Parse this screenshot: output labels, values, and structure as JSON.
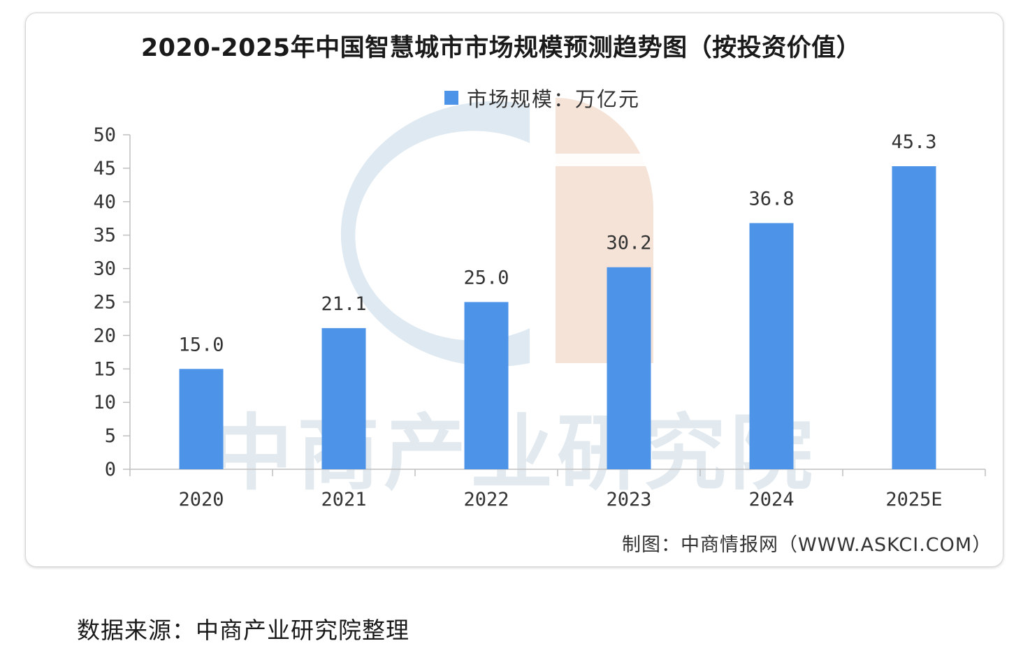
{
  "chart_data": {
    "type": "bar",
    "title": "2020-2025年中国智慧城市市场规模预测趋势图（按投资价值）",
    "legend": [
      "市场规模：万亿元"
    ],
    "legend_position": "top-center",
    "categories": [
      "2020",
      "2021",
      "2022",
      "2023",
      "2024",
      "2025E"
    ],
    "series": [
      {
        "name": "市场规模：万亿元",
        "values": [
          15.0,
          21.1,
          25.0,
          30.2,
          36.8,
          45.3
        ],
        "labels": [
          "15.0",
          "21.1",
          "25.0",
          "30.2",
          "36.8",
          "45.3"
        ],
        "color": "#4d94e8"
      }
    ],
    "ylim": [
      0,
      50
    ],
    "yticks": [
      0,
      5,
      10,
      15,
      20,
      25,
      30,
      35,
      40,
      45,
      50
    ],
    "xlabel": "",
    "ylabel": "",
    "grid": false
  },
  "credit": "制图：中商情报网（WWW.ASKCI.COM）",
  "source": "数据来源：中商产业研究院整理",
  "watermark": {
    "text": "中商产业研究院",
    "logo_colors": [
      "#d4e2ee",
      "#f2dccd"
    ]
  }
}
